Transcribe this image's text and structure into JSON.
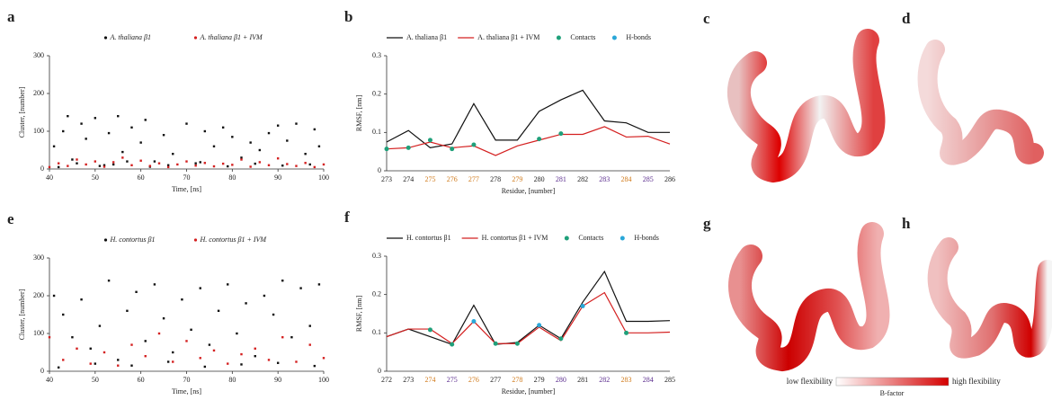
{
  "chart_data": [
    {
      "type": "scatter",
      "panel_label": "a",
      "x_label": "Time, [ns]",
      "y_label": "Cluster, [number]",
      "xlim": [
        40,
        100
      ],
      "xticks": [
        40,
        50,
        60,
        70,
        80,
        90,
        100
      ],
      "ylim": [
        0,
        300
      ],
      "yticks": [
        0,
        100,
        200,
        300
      ],
      "series": [
        {
          "name": "A. thaliana β1",
          "color": "#111111",
          "x": [
            41,
            43,
            44,
            45,
            47,
            48,
            50,
            52,
            53,
            55,
            56,
            58,
            60,
            61,
            63,
            65,
            67,
            70,
            72,
            74,
            76,
            78,
            80,
            82,
            84,
            86,
            88,
            90,
            92,
            94,
            96,
            98,
            99,
            42,
            46,
            51,
            54,
            57,
            62,
            66,
            73,
            79,
            85,
            91,
            97
          ],
          "values": [
            60,
            100,
            140,
            25,
            120,
            80,
            135,
            10,
            95,
            140,
            45,
            110,
            70,
            130,
            20,
            90,
            40,
            120,
            15,
            100,
            60,
            110,
            85,
            30,
            70,
            50,
            95,
            115,
            75,
            120,
            40,
            105,
            60,
            5,
            15,
            8,
            12,
            20,
            6,
            10,
            18,
            7,
            14,
            9,
            12
          ]
        },
        {
          "name": "A. thaliana β1 + IVM",
          "color": "#d42020",
          "x": [
            40,
            42,
            44,
            46,
            48,
            50,
            52,
            54,
            56,
            58,
            60,
            62,
            64,
            66,
            68,
            70,
            72,
            74,
            76,
            78,
            80,
            82,
            84,
            86,
            88,
            90,
            92,
            94,
            96,
            98,
            100
          ],
          "values": [
            5,
            15,
            8,
            25,
            12,
            20,
            6,
            18,
            30,
            10,
            22,
            8,
            15,
            5,
            12,
            20,
            9,
            16,
            7,
            14,
            11,
            25,
            6,
            18,
            10,
            28,
            13,
            8,
            16,
            5,
            12
          ]
        }
      ]
    },
    {
      "type": "line",
      "panel_label": "b",
      "x_label": "Residue, [number]",
      "y_label": "RMSF, [nm]",
      "categories": [
        "273",
        "274",
        "275",
        "276",
        "277",
        "278",
        "279",
        "280",
        "281",
        "282",
        "283",
        "284",
        "285",
        "286"
      ],
      "category_colors": [
        "#222",
        "#222",
        "#d07a1a",
        "#d07a1a",
        "#d07a1a",
        "#222",
        "#d07a1a",
        "#222",
        "#5b2d8e",
        "#222",
        "#5b2d8e",
        "#d07a1a",
        "#5b2d8e",
        "#222"
      ],
      "ylim": [
        0,
        0.3
      ],
      "yticks": [
        0,
        0.1,
        0.2,
        0.3
      ],
      "series": [
        {
          "name": "A. thaliana β1",
          "color": "#111111",
          "style": "line",
          "values": [
            0.075,
            0.105,
            0.06,
            0.07,
            0.175,
            0.08,
            0.08,
            0.155,
            0.185,
            0.21,
            0.13,
            0.125,
            0.1,
            0.1
          ]
        },
        {
          "name": "A. thaliana β1 + IVM",
          "color": "#d42020",
          "style": "line",
          "values": [
            0.057,
            0.06,
            0.075,
            0.06,
            0.065,
            0.04,
            0.065,
            0.08,
            0.095,
            0.095,
            0.115,
            0.088,
            0.09,
            0.07
          ]
        },
        {
          "name": "Contacts",
          "color": "#1fa07a",
          "style": "marker",
          "values": [
            0.057,
            0.06,
            0.08,
            0.057,
            0.068,
            null,
            null,
            0.083,
            0.097,
            null,
            null,
            null,
            null,
            null
          ]
        },
        {
          "name": "H-bonds",
          "color": "#2aa7d8",
          "style": "marker",
          "values": [
            null,
            null,
            null,
            null,
            null,
            null,
            null,
            null,
            null,
            null,
            null,
            null,
            null,
            null
          ]
        }
      ]
    },
    {
      "type": "scatter",
      "panel_label": "e",
      "x_label": "Time, [ns]",
      "y_label": "Cluster, [number]",
      "xlim": [
        40,
        100
      ],
      "xticks": [
        40,
        50,
        60,
        70,
        80,
        90,
        100
      ],
      "ylim": [
        0,
        300
      ],
      "yticks": [
        0,
        100,
        200,
        300
      ],
      "series": [
        {
          "name": "H. contortus β1",
          "color": "#111111",
          "x": [
            41,
            43,
            45,
            47,
            49,
            51,
            53,
            55,
            57,
            59,
            61,
            63,
            65,
            67,
            69,
            71,
            73,
            75,
            77,
            79,
            81,
            83,
            85,
            87,
            89,
            91,
            93,
            95,
            97,
            99,
            42,
            50,
            58,
            66,
            74,
            82,
            90,
            98
          ],
          "values": [
            200,
            150,
            90,
            190,
            60,
            120,
            240,
            30,
            160,
            210,
            80,
            230,
            140,
            50,
            190,
            110,
            220,
            70,
            160,
            230,
            100,
            180,
            40,
            200,
            150,
            240,
            90,
            220,
            120,
            230,
            10,
            20,
            15,
            25,
            12,
            18,
            22,
            14
          ]
        },
        {
          "name": "H. contortus β1 + IVM",
          "color": "#d42020",
          "x": [
            40,
            43,
            46,
            49,
            52,
            55,
            58,
            61,
            64,
            67,
            70,
            73,
            76,
            79,
            82,
            85,
            88,
            91,
            94,
            97,
            100
          ],
          "values": [
            90,
            30,
            60,
            20,
            50,
            15,
            70,
            40,
            100,
            25,
            80,
            35,
            55,
            20,
            45,
            60,
            30,
            90,
            25,
            70,
            35
          ]
        }
      ]
    },
    {
      "type": "line",
      "panel_label": "f",
      "x_label": "Residue, [number]",
      "y_label": "RMSF, [nm]",
      "categories": [
        "272",
        "273",
        "274",
        "275",
        "276",
        "277",
        "278",
        "279",
        "280",
        "281",
        "282",
        "283",
        "284",
        "285"
      ],
      "category_colors": [
        "#222",
        "#222",
        "#d07a1a",
        "#5b2d8e",
        "#d07a1a",
        "#222",
        "#d07a1a",
        "#222",
        "#5b2d8e",
        "#222",
        "#5b2d8e",
        "#d07a1a",
        "#5b2d8e",
        "#222"
      ],
      "ylim": [
        0,
        0.3
      ],
      "yticks": [
        0,
        0.1,
        0.2,
        0.3
      ],
      "series": [
        {
          "name": "H. contortus β1",
          "color": "#111111",
          "style": "line",
          "values": [
            0.09,
            0.11,
            0.09,
            0.07,
            0.172,
            0.07,
            0.075,
            0.12,
            0.085,
            0.18,
            0.26,
            0.13,
            0.13,
            0.132
          ]
        },
        {
          "name": "H. contortus β1 + IVM",
          "color": "#d42020",
          "style": "line",
          "values": [
            0.09,
            0.11,
            0.11,
            0.072,
            0.13,
            0.072,
            0.072,
            0.115,
            0.08,
            0.17,
            0.205,
            0.1,
            0.1,
            0.102
          ]
        },
        {
          "name": "Contacts",
          "color": "#1fa07a",
          "style": "marker",
          "values": [
            null,
            null,
            0.108,
            0.07,
            null,
            0.072,
            0.072,
            null,
            0.085,
            null,
            null,
            0.1,
            null,
            null
          ]
        },
        {
          "name": "H-bonds",
          "color": "#2aa7d8",
          "style": "marker",
          "values": [
            null,
            null,
            null,
            null,
            0.13,
            null,
            null,
            0.12,
            null,
            0.17,
            null,
            null,
            null,
            null
          ]
        }
      ]
    }
  ],
  "structures": [
    {
      "label": "c"
    },
    {
      "label": "d"
    },
    {
      "label": "g"
    },
    {
      "label": "h"
    }
  ],
  "colorbar": {
    "low": "low flexibility",
    "high": "high flexibility",
    "title": "B-factor"
  }
}
